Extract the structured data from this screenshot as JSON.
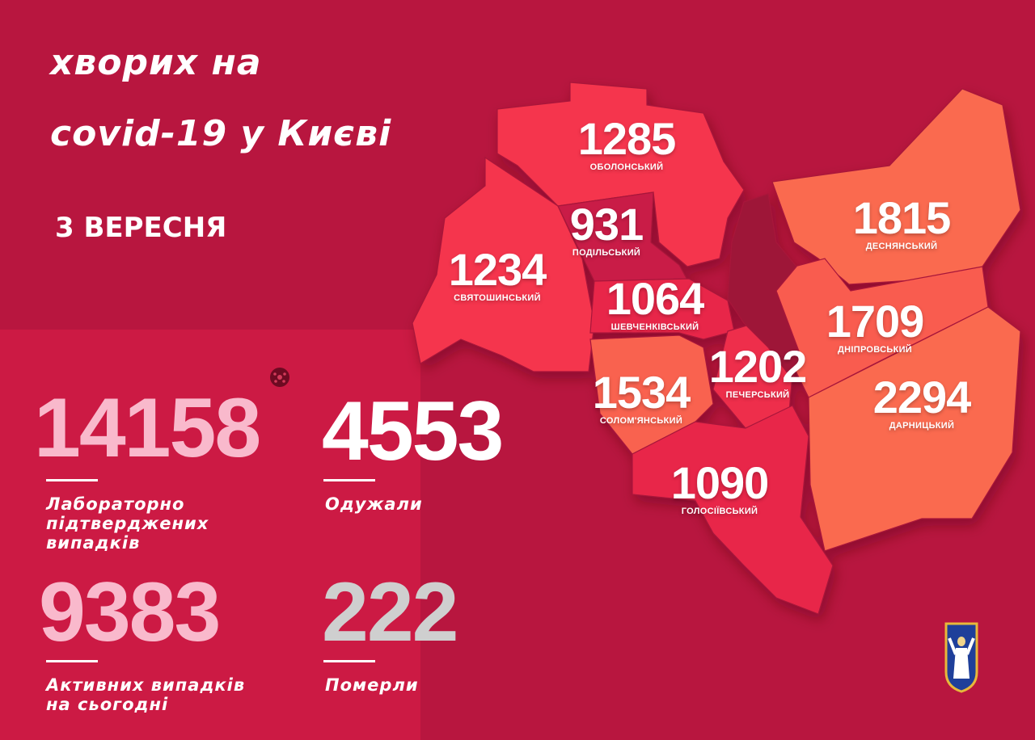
{
  "title_line1": "хворих на",
  "title_line2": "covid-19 у Києві",
  "date": "3 ВЕРЕСНЯ",
  "stats": [
    {
      "value": "14158",
      "label": [
        "Лабораторно",
        "підтверджених",
        "випадків"
      ],
      "color": "#f9b9cc"
    },
    {
      "value": "4553",
      "label": [
        "Одужали"
      ],
      "color": "#ffffff"
    },
    {
      "value": "9383",
      "label": [
        "Активних випадків",
        "на сьогодні"
      ],
      "color": "#f9b9cc"
    },
    {
      "value": "222",
      "label": [
        "Померли"
      ],
      "color": "#cfcfcf"
    }
  ],
  "districts": [
    {
      "name": "ОБОЛОНСЬКИЙ",
      "value": "1285",
      "color": "#f5344d"
    },
    {
      "name": "ПОДІЛЬСЬКИЙ",
      "value": "931",
      "color": "#c91c47"
    },
    {
      "name": "СВЯТОШИНСЬКИЙ",
      "value": "1234",
      "color": "#f5344d"
    },
    {
      "name": "ШЕВЧЕНКІВСЬКИЙ",
      "value": "1064",
      "color": "#e8284a"
    },
    {
      "name": "ДЕСНЯНСЬКИЙ",
      "value": "1815",
      "color": "#fa6a50"
    },
    {
      "name": "ДНІПРОВСЬКИЙ",
      "value": "1709",
      "color": "#f95c50"
    },
    {
      "name": "ПЕЧЕРСЬКИЙ",
      "value": "1202",
      "color": "#ee2d4c"
    },
    {
      "name": "СОЛОМ'ЯНСЬКИЙ",
      "value": "1534",
      "color": "#f9624f"
    },
    {
      "name": "ДАРНИЦЬКИЙ",
      "value": "2294",
      "color": "#fa6a50"
    },
    {
      "name": "ГОЛОСІЇВСЬКИЙ",
      "value": "1090",
      "color": "#e8284a"
    }
  ],
  "icons": {
    "virus": "virus-icon",
    "emblem": "kyiv-coat-of-arms"
  }
}
